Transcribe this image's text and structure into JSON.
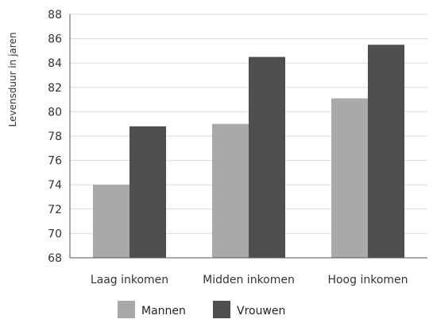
{
  "chart_data": {
    "type": "bar",
    "title": "",
    "xlabel": "",
    "ylabel": "Levensduur in jaren",
    "ylim": [
      68,
      88
    ],
    "ytick_step": 2,
    "categories": [
      "Laag inkomen",
      "Midden inkomen",
      "Hoog inkomen"
    ],
    "series": [
      {
        "name": "Mannen",
        "color": "#a9a9a9",
        "values": [
          74.0,
          79.0,
          81.1
        ]
      },
      {
        "name": "Vrouwen",
        "color": "#4f4f4f",
        "values": [
          78.8,
          84.5,
          85.5
        ]
      }
    ],
    "grid": true,
    "legend_position": "bottom-center"
  }
}
